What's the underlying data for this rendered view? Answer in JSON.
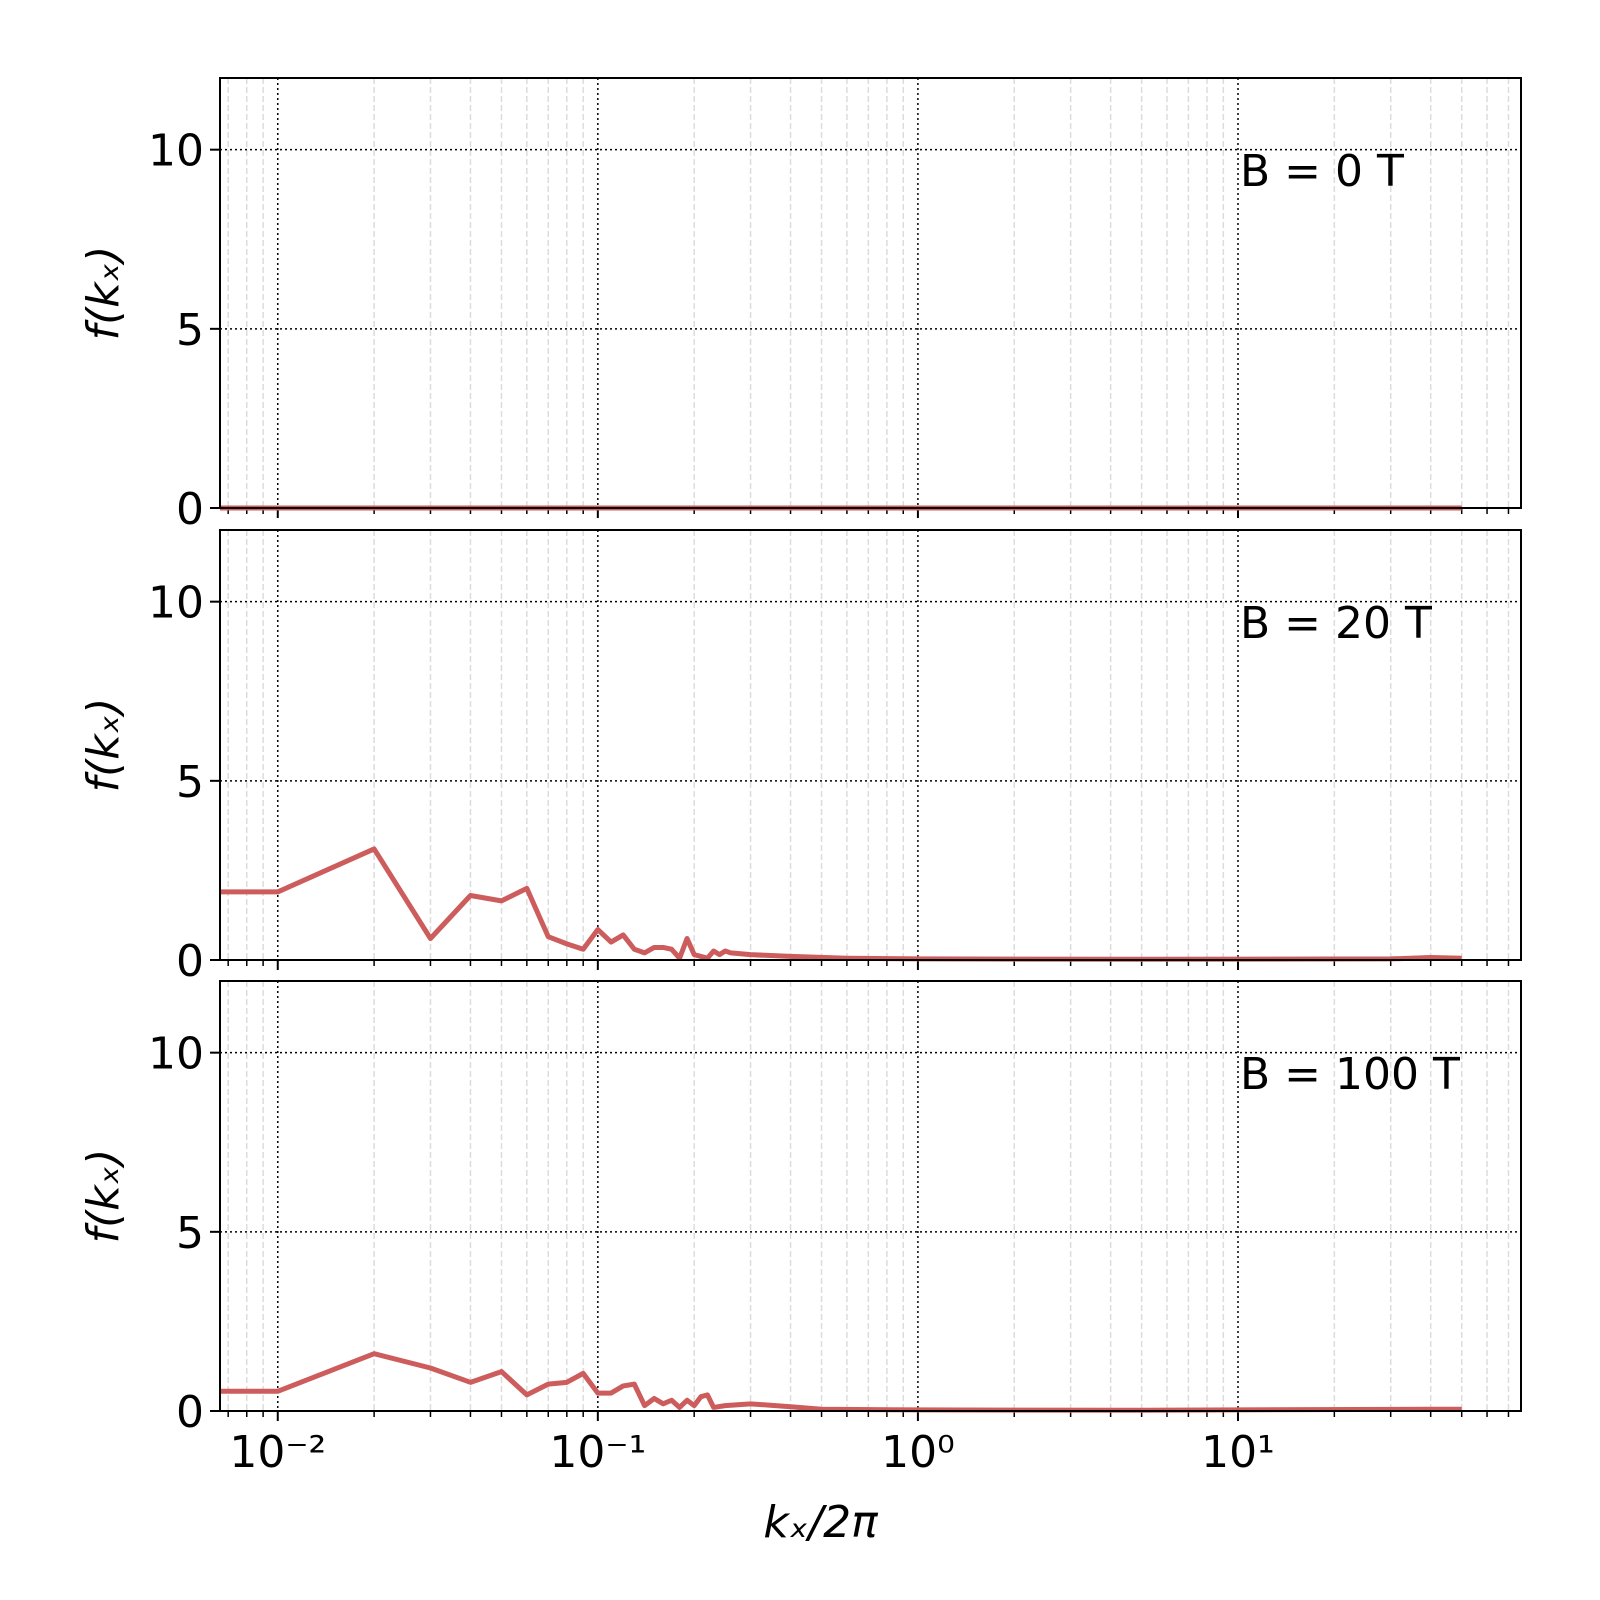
{
  "chart_data": [
    {
      "type": "line",
      "annotation": "B = 0 T",
      "y_label": "f(kₓ)",
      "x": [
        0.0066,
        50
      ],
      "values": [
        0,
        0
      ],
      "color": "#cd5c5c",
      "xlim": [
        0.0066,
        76.6
      ],
      "ylim": [
        0,
        12
      ],
      "log_x": true,
      "xticks": [
        0.01,
        0.1,
        1,
        10
      ],
      "yticks": [
        0,
        5,
        10
      ],
      "grid": true,
      "minor_grid": true
    },
    {
      "type": "line",
      "annotation": "B = 20 T",
      "y_label": "f(kₓ)",
      "x": [
        0.0066,
        0.01,
        0.02,
        0.03,
        0.04,
        0.05,
        0.06,
        0.07,
        0.08,
        0.09,
        0.1,
        0.11,
        0.12,
        0.13,
        0.14,
        0.15,
        0.16,
        0.17,
        0.18,
        0.19,
        0.2,
        0.21,
        0.22,
        0.23,
        0.24,
        0.25,
        0.26,
        0.3,
        0.4,
        0.6,
        1,
        5,
        30,
        40,
        50
      ],
      "values": [
        1.9,
        1.9,
        3.1,
        0.6,
        1.8,
        1.65,
        2.0,
        0.65,
        0.45,
        0.3,
        0.85,
        0.5,
        0.7,
        0.3,
        0.2,
        0.35,
        0.35,
        0.3,
        0.05,
        0.6,
        0.15,
        0.1,
        0.05,
        0.25,
        0.15,
        0.25,
        0.2,
        0.15,
        0.1,
        0.05,
        0.03,
        0.02,
        0.03,
        0.07,
        0.05
      ],
      "color": "#cd5c5c",
      "xlim": [
        0.0066,
        76.6
      ],
      "ylim": [
        0,
        12
      ],
      "log_x": true,
      "xticks": [
        0.01,
        0.1,
        1,
        10
      ],
      "yticks": [
        0,
        5,
        10
      ],
      "grid": true,
      "minor_grid": true
    },
    {
      "type": "line",
      "annotation": "B = 100 T",
      "y_label": "f(kₓ)",
      "x_label": "kₓ/2π",
      "x": [
        0.0066,
        0.01,
        0.02,
        0.03,
        0.04,
        0.05,
        0.06,
        0.07,
        0.08,
        0.09,
        0.1,
        0.11,
        0.12,
        0.13,
        0.14,
        0.15,
        0.16,
        0.17,
        0.18,
        0.19,
        0.2,
        0.21,
        0.22,
        0.23,
        0.25,
        0.3,
        0.4,
        0.5,
        1,
        5,
        40,
        50
      ],
      "values": [
        0.55,
        0.55,
        1.6,
        1.2,
        0.8,
        1.1,
        0.45,
        0.75,
        0.8,
        1.05,
        0.5,
        0.5,
        0.7,
        0.75,
        0.15,
        0.35,
        0.2,
        0.3,
        0.1,
        0.3,
        0.15,
        0.4,
        0.45,
        0.1,
        0.15,
        0.2,
        0.12,
        0.05,
        0.03,
        0.02,
        0.05,
        0.05
      ],
      "color": "#cd5c5c",
      "xlim": [
        0.0066,
        76.6
      ],
      "ylim": [
        0,
        12
      ],
      "log_x": true,
      "xticks": [
        {
          "value": 0.01,
          "label": "10⁻²"
        },
        {
          "value": 0.1,
          "label": "10⁻¹"
        },
        {
          "value": 1,
          "label": "10⁰"
        },
        {
          "value": 10,
          "label": "10¹"
        }
      ],
      "yticks": [
        0,
        5,
        10
      ],
      "grid": true,
      "minor_grid": true
    }
  ]
}
